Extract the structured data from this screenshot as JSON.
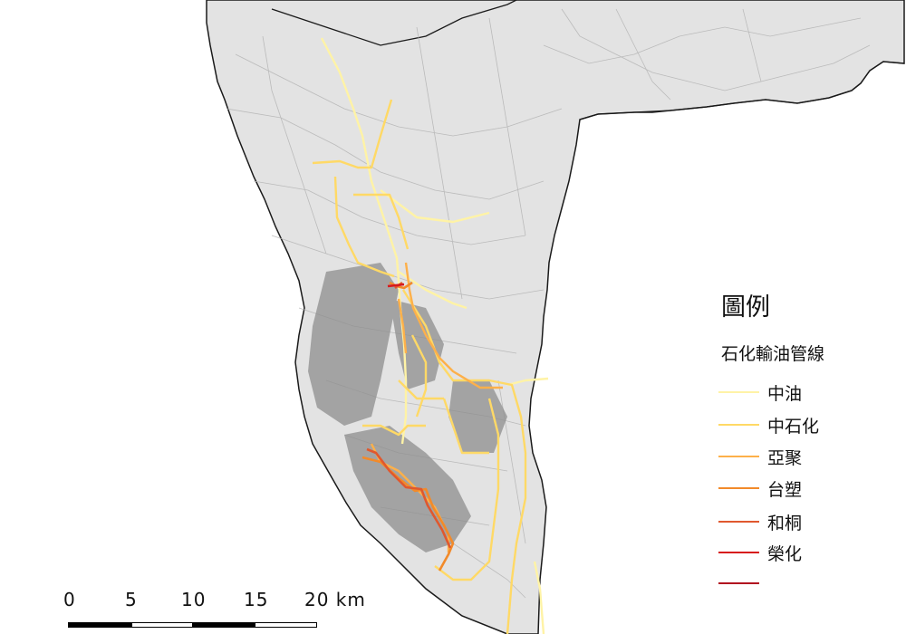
{
  "legend": {
    "title": "圖例",
    "subtitle": "石化輸油管線",
    "items": [
      {
        "label": "中油",
        "color": "#fff3a6"
      },
      {
        "label": "中石化",
        "color": "#ffd966"
      },
      {
        "label": "亞聚",
        "color": "#fdb04a"
      },
      {
        "label": "台塑",
        "color": "#f28a2a"
      },
      {
        "label": "和桐",
        "color": "#e0582e"
      },
      {
        "label": "榮化",
        "color": "#d7191c"
      },
      {
        "label": "",
        "color": "#b10f1f"
      }
    ]
  },
  "scalebar": {
    "ticks": [
      "0",
      "5",
      "10",
      "15",
      "20 km"
    ]
  },
  "colors": {
    "sea": "#ffffff",
    "land": "#e3e3e3",
    "roads": "#b4b4b4",
    "urban": "#8e8e8e",
    "coast": "#222222"
  }
}
